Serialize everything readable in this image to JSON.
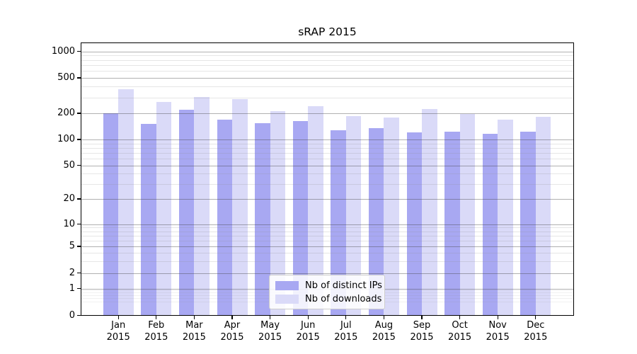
{
  "chart_data": {
    "type": "bar",
    "title": "sRAP 2015",
    "categories": [
      "Jan",
      "Feb",
      "Mar",
      "Apr",
      "May",
      "Jun",
      "Jul",
      "Aug",
      "Sep",
      "Oct",
      "Nov",
      "Dec"
    ],
    "category_year": "2015",
    "series": [
      {
        "name": "Nb of distinct IPs",
        "color": "#a8a8f2",
        "values": [
          200,
          150,
          220,
          170,
          153,
          163,
          128,
          135,
          120,
          122,
          117,
          124
        ]
      },
      {
        "name": "Nb of downloads",
        "color": "#dadaf8",
        "values": [
          370,
          270,
          305,
          290,
          210,
          240,
          185,
          180,
          225,
          195,
          170,
          183
        ]
      }
    ],
    "xlabel": "",
    "ylabel": "",
    "yscale": "symlog",
    "y_ticks": [
      0,
      1,
      2,
      5,
      10,
      20,
      50,
      100,
      200,
      500,
      1000
    ],
    "ylim": [
      0,
      1500
    ],
    "grid": true,
    "legend_position": "lower center"
  }
}
